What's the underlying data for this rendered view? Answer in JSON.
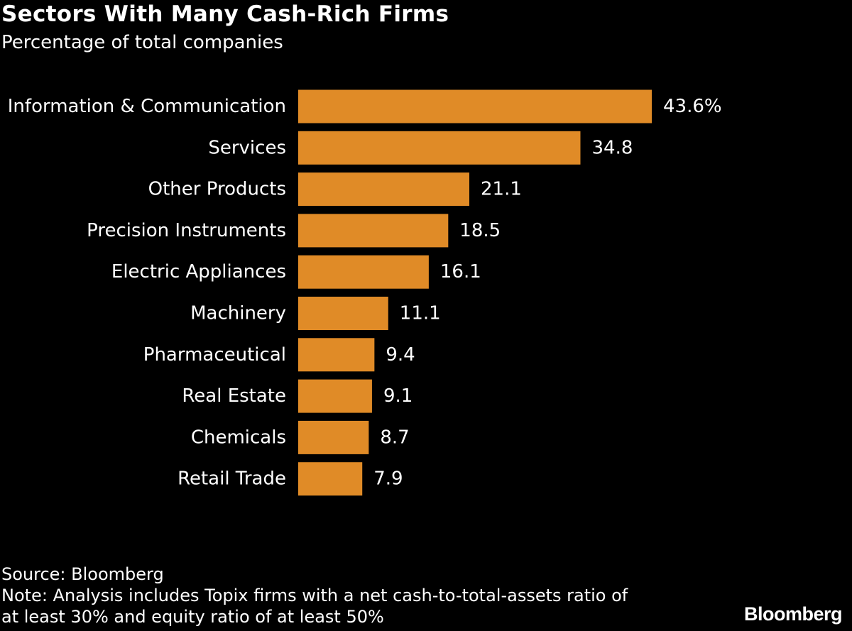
{
  "header": {
    "title": "Sectors With Many Cash-Rich Firms",
    "subtitle": "Percentage of total companies"
  },
  "chart_data": {
    "type": "bar",
    "orientation": "horizontal",
    "title": "Sectors With Many Cash-Rich Firms",
    "subtitle": "Percentage of total companies",
    "categories": [
      "Information & Communication",
      "Services",
      "Other Products",
      "Precision Instruments",
      "Electric Appliances",
      "Machinery",
      "Pharmaceutical",
      "Real Estate",
      "Chemicals",
      "Retail Trade"
    ],
    "values": [
      43.6,
      34.8,
      21.1,
      18.5,
      16.1,
      11.1,
      9.4,
      9.1,
      8.7,
      7.9
    ],
    "value_labels": [
      "43.6%",
      "34.8",
      "21.1",
      "18.5",
      "16.1",
      "11.1",
      "9.4",
      "9.1",
      "8.7",
      "7.9"
    ],
    "xlim": [
      0,
      43.6
    ],
    "grid": false,
    "bar_color": "#e08b27",
    "background_color": "#000000",
    "text_color": "#ffffff"
  },
  "footer": {
    "source": "Source: Bloomberg",
    "note_line1": "Note: Analysis includes Topix firms with a net cash-to-total-assets ratio of",
    "note_line2": "at least 30% and equity ratio of at least 50%"
  },
  "brand": {
    "logo_text": "Bloomberg"
  }
}
